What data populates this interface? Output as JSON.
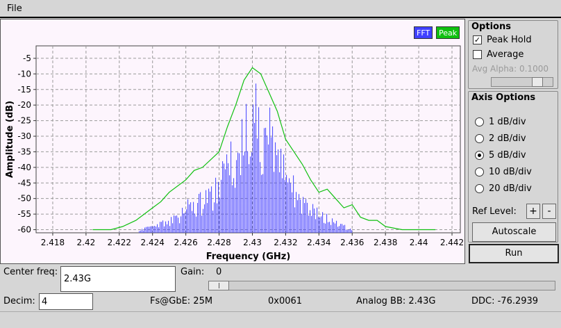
{
  "menu": {
    "file_label": "File"
  },
  "legend": {
    "fft_label": "FFT",
    "peak_label": "Peak"
  },
  "chart_data": {
    "type": "line",
    "xlabel": "Frequency (GHz)",
    "ylabel": "Amplitude (dB)",
    "xlim": [
      2.417,
      2.4425
    ],
    "ylim": [
      -61,
      -1
    ],
    "x_ticks": [
      "2.418",
      "2.42",
      "2.422",
      "2.424",
      "2.426",
      "2.428",
      "2.43",
      "2.432",
      "2.434",
      "2.436",
      "2.438",
      "2.44",
      "2.442"
    ],
    "y_ticks": [
      "-5",
      "-10",
      "-15",
      "-20",
      "-25",
      "-30",
      "-35",
      "-40",
      "-45",
      "-50",
      "-55",
      "-60"
    ],
    "grid": true,
    "legend_position": "top-right",
    "series": [
      {
        "name": "Peak",
        "color": "#10c010",
        "x": [
          2.4204,
          2.4215,
          2.4222,
          2.423,
          2.424,
          2.4245,
          2.425,
          2.426,
          2.4265,
          2.427,
          2.428,
          2.4285,
          2.429,
          2.4295,
          2.43,
          2.4305,
          2.431,
          2.4315,
          2.432,
          2.4325,
          2.433,
          2.4335,
          2.434,
          2.4345,
          2.435,
          2.4355,
          2.436,
          2.4365,
          2.437,
          2.4375,
          2.438,
          2.439,
          2.44,
          2.441
        ],
        "values": [
          -60,
          -60,
          -59,
          -57,
          -53,
          -51,
          -48,
          -44,
          -41,
          -40,
          -35,
          -27,
          -20,
          -12,
          -8,
          -10,
          -16,
          -22,
          -31,
          -35,
          -39,
          -44,
          -48,
          -47,
          -50,
          -53,
          -52,
          -56,
          -57,
          -57,
          -59,
          -60,
          -60,
          -60
        ]
      },
      {
        "name": "FFT",
        "color": "#4040ff",
        "x": [
          2.4232,
          2.4245,
          2.4255,
          2.426,
          2.4268,
          2.4275,
          2.428,
          2.4285,
          2.429,
          2.4295,
          2.43,
          2.4305,
          2.431,
          2.4315,
          2.432,
          2.4325,
          2.433,
          2.4335,
          2.434,
          2.4345,
          2.435,
          2.4355,
          2.436
        ],
        "values": [
          -60,
          -57,
          -55,
          -50,
          -48,
          -45,
          -40,
          -32,
          -26,
          -18,
          -12,
          -14,
          -20,
          -28,
          -36,
          -42,
          -46,
          -50,
          -53,
          -55,
          -57,
          -58,
          -60
        ]
      }
    ]
  },
  "options": {
    "title": "Options",
    "peak_hold_label": "Peak Hold",
    "peak_hold_checked": true,
    "average_label": "Average",
    "average_checked": false,
    "avg_alpha_label": "Avg Alpha: 0.1000",
    "avg_alpha_value": 0.1
  },
  "axis_options": {
    "title": "Axis Options",
    "radios": [
      {
        "label": "1 dB/div",
        "selected": false
      },
      {
        "label": "2 dB/div",
        "selected": false
      },
      {
        "label": "5 dB/div",
        "selected": true
      },
      {
        "label": "10 dB/div",
        "selected": false
      },
      {
        "label": "20 dB/div",
        "selected": false
      }
    ],
    "ref_level_label": "Ref Level:",
    "plus_label": "+",
    "minus_label": "-",
    "autoscale_label": "Autoscale"
  },
  "run_label": "Run",
  "bottom": {
    "center_freq_label": "Center freq:",
    "center_freq_value": "2.43G",
    "gain_label": "Gain:",
    "gain_value": "0",
    "gain_level": 0,
    "decim_label": "Decim:",
    "decim_value": "4",
    "fs_text": "Fs@GbE: 25M",
    "hex_text": "0x0061",
    "analog_bb_text": "Analog BB: 2.43G",
    "ddc_text": "DDC: -76.2939"
  }
}
